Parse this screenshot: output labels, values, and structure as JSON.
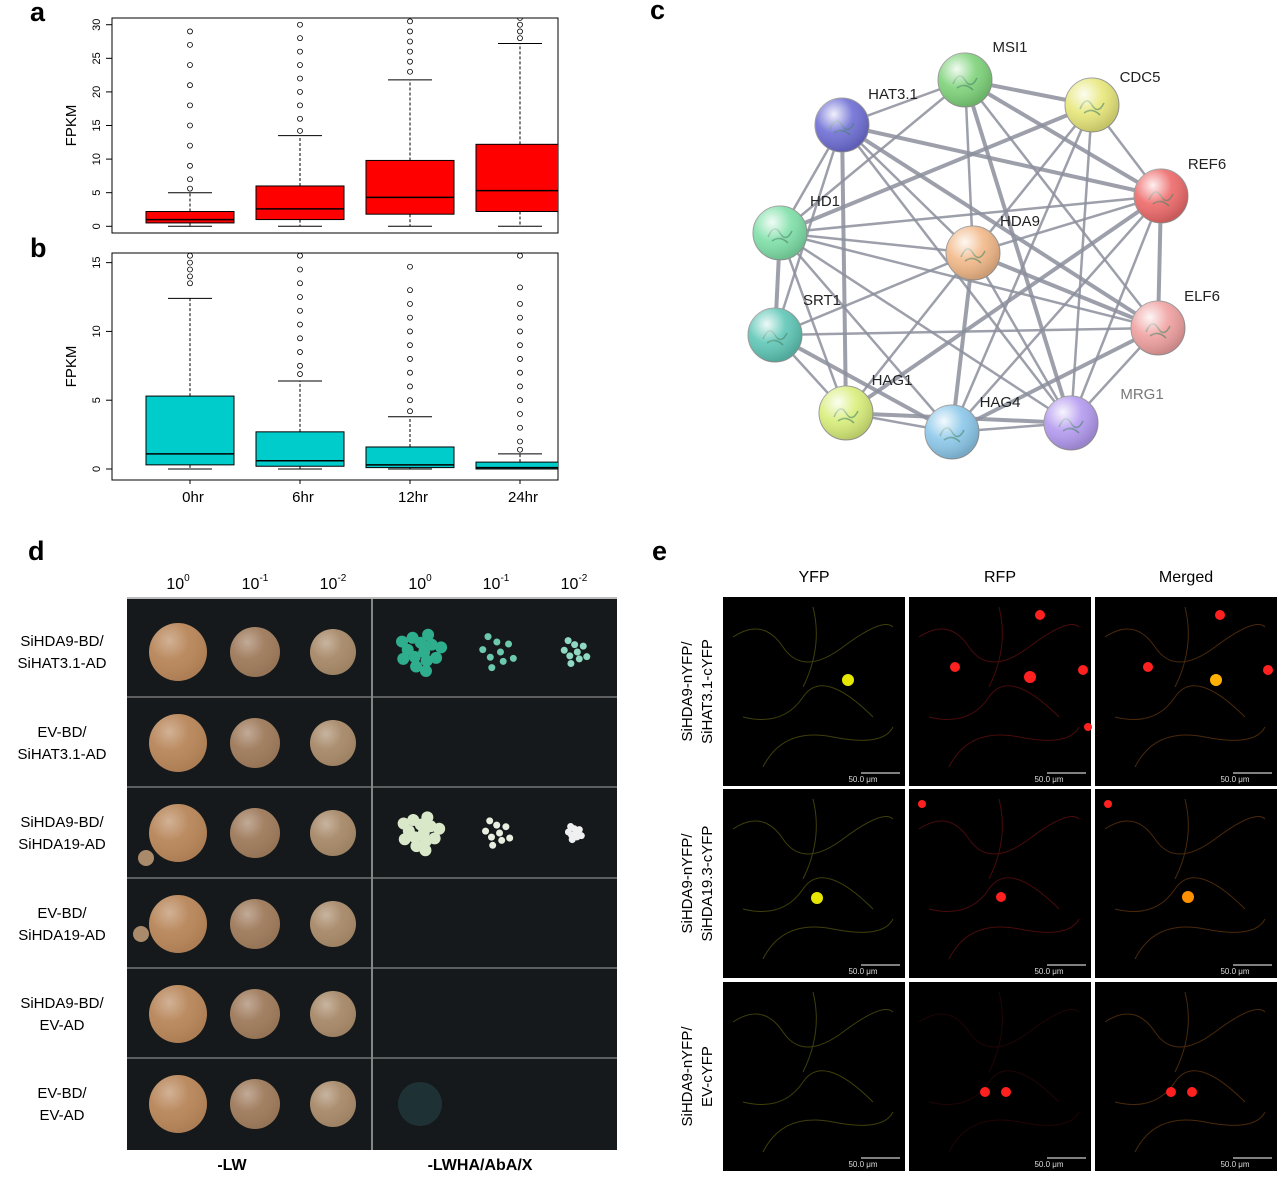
{
  "chart_data": [
    {
      "type": "box",
      "panel_label": "a",
      "ylabel": "FPKM",
      "categories": [
        null,
        null,
        null,
        null
      ],
      "color": "#ff0000",
      "ylim": [
        -1,
        31
      ],
      "yticks": [
        0,
        5,
        10,
        15,
        20,
        25,
        30
      ],
      "grid": false,
      "boxes": [
        {
          "whisker_low": 0,
          "q1": 0.5,
          "median": 1,
          "q3": 2.2,
          "whisker_high": 5,
          "outliers": [
            5.6,
            7,
            9,
            12,
            15,
            18,
            21,
            24,
            27,
            29
          ]
        },
        {
          "whisker_low": 0,
          "q1": 1,
          "median": 2.6,
          "q3": 6,
          "whisker_high": 13.5,
          "outliers": [
            14.2,
            16,
            18,
            20,
            22,
            24,
            26,
            28,
            30
          ]
        },
        {
          "whisker_low": 0,
          "q1": 1.8,
          "median": 4.3,
          "q3": 9.8,
          "whisker_high": 21.8,
          "outliers": [
            23,
            24.5,
            26,
            27.5,
            29,
            30.5
          ]
        },
        {
          "whisker_low": 0,
          "q1": 2.2,
          "median": 5.3,
          "q3": 12.2,
          "whisker_high": 27.2,
          "outliers": [
            28,
            29,
            30,
            31
          ]
        }
      ]
    },
    {
      "type": "box",
      "panel_label": "b",
      "ylabel": "FPKM",
      "categories": [
        "0hr",
        "6hr",
        "12hr",
        "24hr"
      ],
      "color": "#00cccc",
      "ylim": [
        -0.8,
        15.7
      ],
      "yticks": [
        0,
        5,
        10,
        15
      ],
      "grid": false,
      "boxes": [
        {
          "whisker_low": 0,
          "q1": 0.3,
          "median": 1.1,
          "q3": 5.3,
          "whisker_high": 12.4,
          "outliers": [
            13.5,
            14,
            14.5,
            15,
            15.5
          ]
        },
        {
          "whisker_low": 0,
          "q1": 0.2,
          "median": 0.6,
          "q3": 2.7,
          "whisker_high": 6.4,
          "outliers": [
            6.9,
            7.5,
            8.5,
            9.5,
            10.5,
            11.5,
            12.5,
            13.5,
            14.5,
            15.5
          ]
        },
        {
          "whisker_low": 0,
          "q1": 0.1,
          "median": 0.3,
          "q3": 1.6,
          "whisker_high": 3.8,
          "outliers": [
            4.2,
            5,
            6,
            7,
            8,
            9,
            10,
            11,
            12,
            13,
            14.7
          ]
        },
        {
          "whisker_low": 0,
          "q1": 0,
          "median": 0.1,
          "q3": 0.5,
          "whisker_high": 1.1,
          "outliers": [
            1.4,
            2,
            3,
            4,
            5,
            6,
            7,
            8,
            9,
            10,
            11,
            12,
            13.2,
            15.5
          ]
        }
      ]
    }
  ],
  "network": {
    "panel_label": "c",
    "nodes": [
      {
        "label": "MSI1"
      },
      {
        "label": "CDC5"
      },
      {
        "label": "HAT3.1"
      },
      {
        "label": "REF6"
      },
      {
        "label": "HD1"
      },
      {
        "label": "HDA9"
      },
      {
        "label": "ELF6"
      },
      {
        "label": "SRT1"
      },
      {
        "label": "HAG1"
      },
      {
        "label": "HAG4"
      },
      {
        "label": "MRG1"
      }
    ]
  },
  "yeast_assay": {
    "panel_label": "d",
    "dilutions": [
      {
        "base": "10",
        "exponent": "0"
      },
      {
        "base": "10",
        "exponent": "-1"
      },
      {
        "base": "10",
        "exponent": "-2"
      }
    ],
    "media": [
      "-LW",
      "-LWHA/AbA/X"
    ],
    "rows": [
      [
        "SiHDA9-BD/",
        "SiHAT3.1-AD"
      ],
      [
        "EV-BD/",
        "SiHAT3.1-AD"
      ],
      [
        "SiHDA9-BD/",
        "SiHDA19-AD"
      ],
      [
        "EV-BD/",
        "SiHDA19-AD"
      ],
      [
        "SiHDA9-BD/",
        "EV-AD"
      ],
      [
        "EV-BD/",
        "EV-AD"
      ]
    ]
  },
  "bifc": {
    "panel_label": "e",
    "channels": [
      "YFP",
      "RFP",
      "Merged"
    ],
    "rows": [
      [
        "SiHDA9-nYFP/",
        "SiHAT3.1-cYFP"
      ],
      [
        "SiHDA9-nYFP/",
        "SiHDA19.3-cYFP"
      ],
      [
        "SiHDA9-nYFP/",
        "EV-cYFP"
      ]
    ],
    "scale_bar": "50.0 μm"
  }
}
